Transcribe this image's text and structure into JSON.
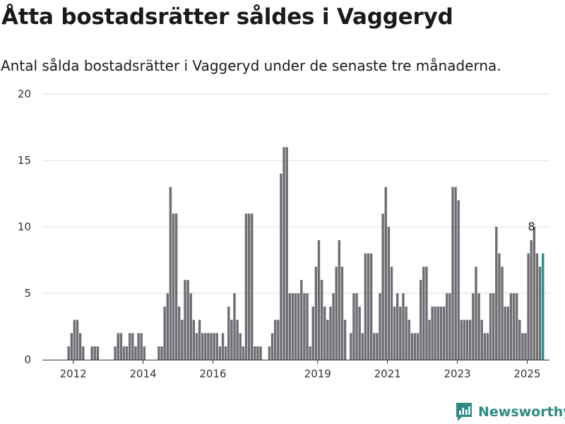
{
  "colors": {
    "bar": "#6e6d73",
    "highlight": "#26958c",
    "grid": "#dddddd",
    "axis": "#333333",
    "brand": "#2d8a82"
  },
  "header": {
    "title": "Åtta bostadsrätter såldes i Vaggeryd",
    "subtitle": "Antal sålda bostadsrätter i Vaggeryd under de senaste tre månaderna."
  },
  "brand": {
    "name": "Newsworthy",
    "icon": "newsworthy-logo-icon"
  },
  "chart_data": {
    "type": "bar",
    "title": "Åtta bostadsrätter såldes i Vaggeryd",
    "subtitle": "Antal sålda bostadsrätter i Vaggeryd under de senaste tre månaderna.",
    "xlabel": "",
    "ylabel": "",
    "ylim": [
      0,
      20
    ],
    "yticks": [
      0,
      5,
      10,
      15,
      20
    ],
    "xticks": [
      "2012",
      "2014",
      "2016",
      "2019",
      "2021",
      "2023",
      "2025"
    ],
    "grid": true,
    "legend": "none",
    "x_start": "2011-03",
    "x_frequency": "monthly",
    "annotation": {
      "month_index": 167,
      "text": "8"
    },
    "highlight_last": true,
    "values": [
      0,
      0,
      0,
      0,
      0,
      0,
      0,
      0,
      1,
      2,
      3,
      3,
      2,
      1,
      0,
      0,
      1,
      1,
      1,
      0,
      0,
      0,
      0,
      0,
      1,
      2,
      2,
      1,
      1,
      2,
      2,
      1,
      2,
      2,
      1,
      0,
      0,
      0,
      0,
      1,
      1,
      4,
      5,
      13,
      11,
      11,
      4,
      3,
      6,
      6,
      5,
      3,
      2,
      3,
      2,
      2,
      2,
      2,
      2,
      2,
      1,
      2,
      1,
      4,
      3,
      5,
      3,
      2,
      1,
      11,
      11,
      11,
      1,
      1,
      1,
      0,
      0,
      1,
      2,
      3,
      3,
      14,
      16,
      16,
      5,
      5,
      5,
      5,
      6,
      5,
      5,
      1,
      4,
      7,
      9,
      6,
      4,
      3,
      4,
      5,
      7,
      9,
      7,
      3,
      0,
      2,
      5,
      5,
      4,
      2,
      8,
      8,
      8,
      2,
      2,
      5,
      11,
      13,
      10,
      7,
      4,
      5,
      4,
      5,
      4,
      3,
      2,
      2,
      2,
      6,
      7,
      7,
      3,
      4,
      4,
      4,
      4,
      4,
      5,
      5,
      13,
      13,
      12,
      3,
      3,
      3,
      3,
      5,
      7,
      5,
      3,
      2,
      2,
      5,
      5,
      10,
      8,
      7,
      4,
      4,
      5,
      5,
      5,
      3,
      2,
      2,
      8,
      9,
      10,
      8,
      7,
      8
    ]
  }
}
